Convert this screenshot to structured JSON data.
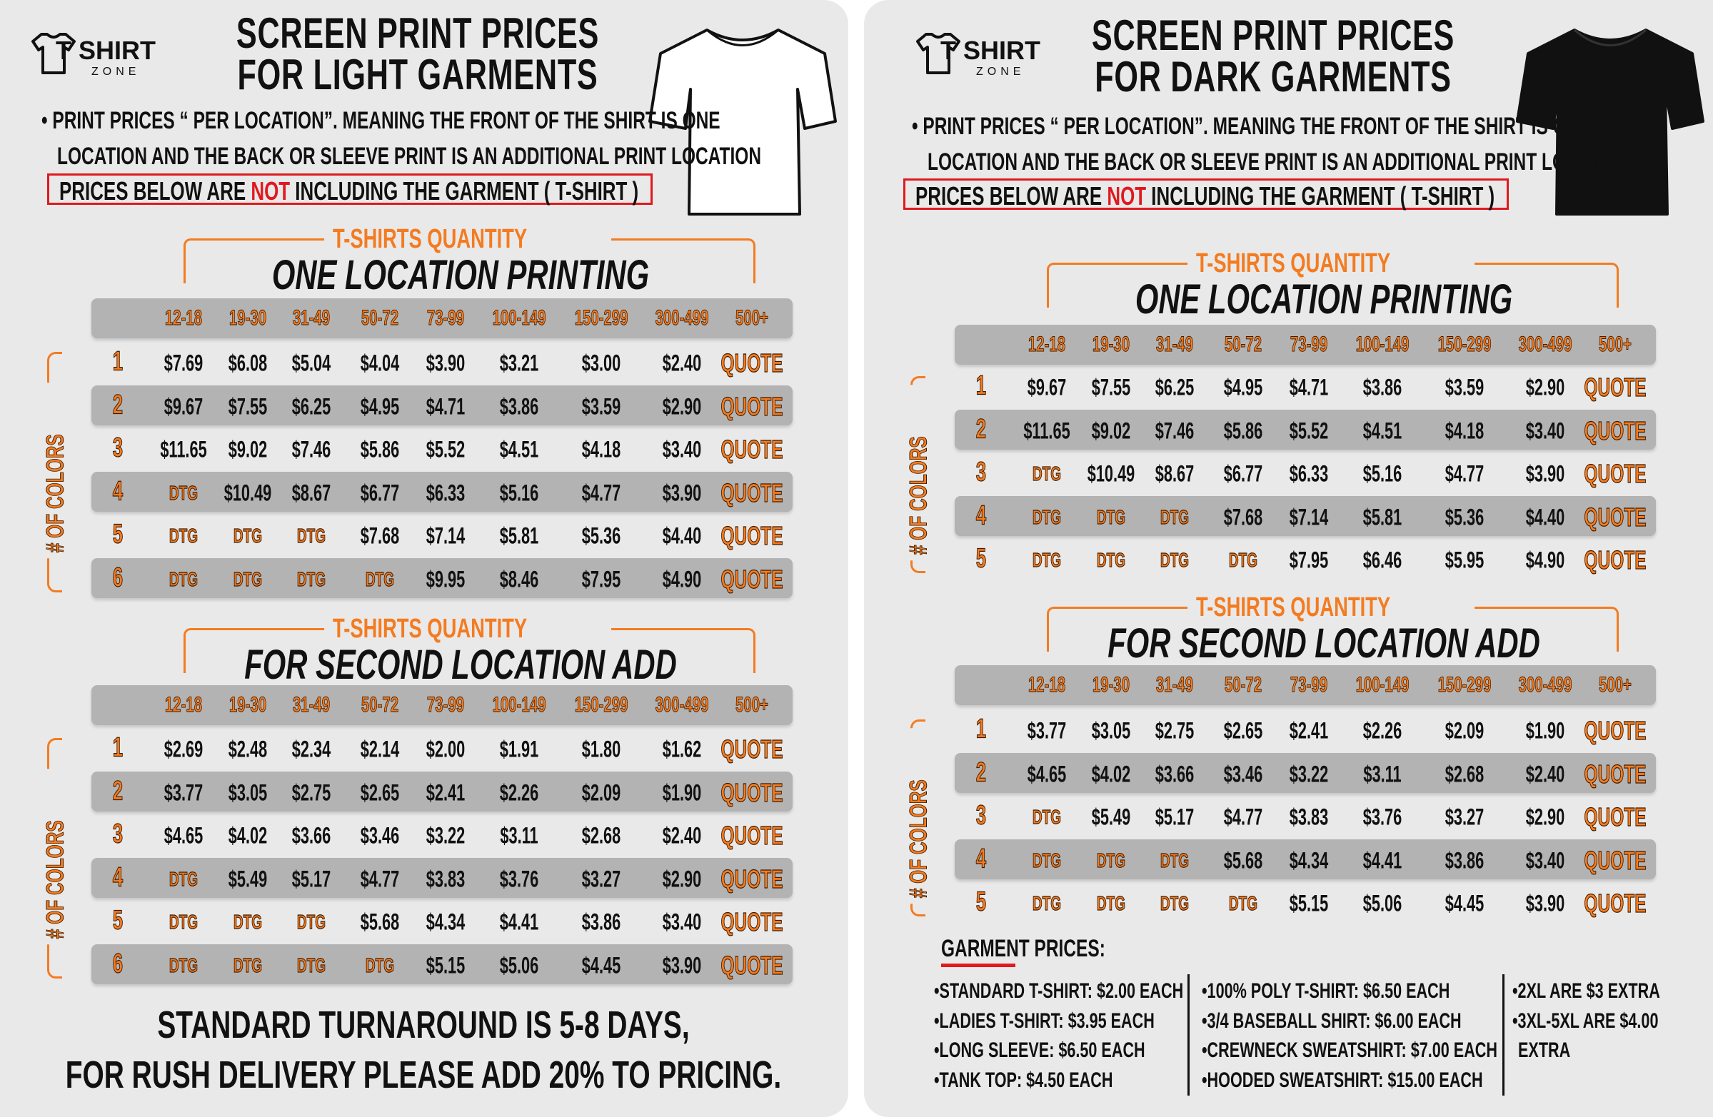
{
  "colors": {
    "accent": "#f47b20",
    "alert": "#e0191e",
    "row_band": "#b3b3b3",
    "panel": "#e9e9e9"
  },
  "left": {
    "logo": {
      "line1": "T SHIRT",
      "line2": "ZONE"
    },
    "title_line1": "SCREEN PRINT PRICES",
    "title_line2": "FOR LIGHT GARMENTS",
    "garment_icon": "white-tshirt-icon",
    "bullet_line1": "• PRINT PRICES “ PER LOCATION”. MEANING THE FRONT OF THE SHIRT IS ONE",
    "bullet_line2": "LOCATION AND THE BACK OR SLEEVE PRINT IS AN ADDITIONAL PRINT LOCATION",
    "notice": {
      "before": "PRICES BELOW ARE ",
      "not": "NOT",
      "after": " INCLUDING THE GARMENT ( T-SHIRT )"
    },
    "tables": [
      {
        "quantity_label": "T-SHIRTS QUANTITY",
        "title": "ONE LOCATION PRINTING",
        "colors_label": "# OF COLORS",
        "columns": [
          "12-18",
          "19-30",
          "31-49",
          "50-72",
          "73-99",
          "100-149",
          "150-299",
          "300-499",
          "500+"
        ],
        "rows": [
          {
            "colors": "1",
            "prices": [
              "$7.69",
              "$6.08",
              "$5.04",
              "$4.04",
              "$3.90",
              "$3.21",
              "$3.00",
              "$2.40",
              "QUOTE"
            ]
          },
          {
            "colors": "2",
            "prices": [
              "$9.67",
              "$7.55",
              "$6.25",
              "$4.95",
              "$4.71",
              "$3.86",
              "$3.59",
              "$2.90",
              "QUOTE"
            ]
          },
          {
            "colors": "3",
            "prices": [
              "$11.65",
              "$9.02",
              "$7.46",
              "$5.86",
              "$5.52",
              "$4.51",
              "$4.18",
              "$3.40",
              "QUOTE"
            ]
          },
          {
            "colors": "4",
            "prices": [
              "DTG",
              "$10.49",
              "$8.67",
              "$6.77",
              "$6.33",
              "$5.16",
              "$4.77",
              "$3.90",
              "QUOTE"
            ]
          },
          {
            "colors": "5",
            "prices": [
              "DTG",
              "DTG",
              "DTG",
              "$7.68",
              "$7.14",
              "$5.81",
              "$5.36",
              "$4.40",
              "QUOTE"
            ]
          },
          {
            "colors": "6",
            "prices": [
              "DTG",
              "DTG",
              "DTG",
              "DTG",
              "$9.95",
              "$8.46",
              "$7.95",
              "$4.90",
              "QUOTE"
            ]
          }
        ]
      },
      {
        "quantity_label": "T-SHIRTS QUANTITY",
        "title": "FOR SECOND LOCATION ADD",
        "colors_label": "# OF COLORS",
        "columns": [
          "12-18",
          "19-30",
          "31-49",
          "50-72",
          "73-99",
          "100-149",
          "150-299",
          "300-499",
          "500+"
        ],
        "rows": [
          {
            "colors": "1",
            "prices": [
              "$2.69",
              "$2.48",
              "$2.34",
              "$2.14",
              "$2.00",
              "$1.91",
              "$1.80",
              "$1.62",
              "QUOTE"
            ]
          },
          {
            "colors": "2",
            "prices": [
              "$3.77",
              "$3.05",
              "$2.75",
              "$2.65",
              "$2.41",
              "$2.26",
              "$2.09",
              "$1.90",
              "QUOTE"
            ]
          },
          {
            "colors": "3",
            "prices": [
              "$4.65",
              "$4.02",
              "$3.66",
              "$3.46",
              "$3.22",
              "$3.11",
              "$2.68",
              "$2.40",
              "QUOTE"
            ]
          },
          {
            "colors": "4",
            "prices": [
              "DTG",
              "$5.49",
              "$5.17",
              "$4.77",
              "$3.83",
              "$3.76",
              "$3.27",
              "$2.90",
              "QUOTE"
            ]
          },
          {
            "colors": "5",
            "prices": [
              "DTG",
              "DTG",
              "DTG",
              "$5.68",
              "$4.34",
              "$4.41",
              "$3.86",
              "$3.40",
              "QUOTE"
            ]
          },
          {
            "colors": "6",
            "prices": [
              "DTG",
              "DTG",
              "DTG",
              "DTG",
              "$5.15",
              "$5.06",
              "$4.45",
              "$3.90",
              "QUOTE"
            ]
          }
        ]
      }
    ],
    "footer_line1": "STANDARD TURNAROUND IS 5-8 DAYS,",
    "footer_line2": "FOR RUSH DELIVERY PLEASE ADD 20% TO PRICING."
  },
  "right": {
    "logo": {
      "line1": "T SHIRT",
      "line2": "ZONE"
    },
    "title_line1": "SCREEN PRINT PRICES",
    "title_line2": "FOR DARK GARMENTS",
    "garment_icon": "black-tshirt-icon",
    "bullet_line1": "• PRINT PRICES “ PER LOCATION”. MEANING THE FRONT OF THE SHIRT IS ONE",
    "bullet_line2": "LOCATION AND THE BACK OR SLEEVE PRINT IS AN ADDITIONAL PRINT LOCATION",
    "notice": {
      "before": "PRICES BELOW ARE ",
      "not": "NOT",
      "after": " INCLUDING THE GARMENT ( T-SHIRT )"
    },
    "tables": [
      {
        "quantity_label": "T-SHIRTS QUANTITY",
        "title": "ONE LOCATION PRINTING",
        "colors_label": "# OF COLORS",
        "columns": [
          "12-18",
          "19-30",
          "31-49",
          "50-72",
          "73-99",
          "100-149",
          "150-299",
          "300-499",
          "500+"
        ],
        "rows": [
          {
            "colors": "1",
            "prices": [
              "$9.67",
              "$7.55",
              "$6.25",
              "$4.95",
              "$4.71",
              "$3.86",
              "$3.59",
              "$2.90",
              "QUOTE"
            ]
          },
          {
            "colors": "2",
            "prices": [
              "$11.65",
              "$9.02",
              "$7.46",
              "$5.86",
              "$5.52",
              "$4.51",
              "$4.18",
              "$3.40",
              "QUOTE"
            ]
          },
          {
            "colors": "3",
            "prices": [
              "DTG",
              "$10.49",
              "$8.67",
              "$6.77",
              "$6.33",
              "$5.16",
              "$4.77",
              "$3.90",
              "QUOTE"
            ]
          },
          {
            "colors": "4",
            "prices": [
              "DTG",
              "DTG",
              "DTG",
              "$7.68",
              "$7.14",
              "$5.81",
              "$5.36",
              "$4.40",
              "QUOTE"
            ]
          },
          {
            "colors": "5",
            "prices": [
              "DTG",
              "DTG",
              "DTG",
              "DTG",
              "$7.95",
              "$6.46",
              "$5.95",
              "$4.90",
              "QUOTE"
            ]
          }
        ]
      },
      {
        "quantity_label": "T-SHIRTS QUANTITY",
        "title": "FOR SECOND LOCATION ADD",
        "colors_label": "# OF COLORS",
        "columns": [
          "12-18",
          "19-30",
          "31-49",
          "50-72",
          "73-99",
          "100-149",
          "150-299",
          "300-499",
          "500+"
        ],
        "rows": [
          {
            "colors": "1",
            "prices": [
              "$3.77",
              "$3.05",
              "$2.75",
              "$2.65",
              "$2.41",
              "$2.26",
              "$2.09",
              "$1.90",
              "QUOTE"
            ]
          },
          {
            "colors": "2",
            "prices": [
              "$4.65",
              "$4.02",
              "$3.66",
              "$3.46",
              "$3.22",
              "$3.11",
              "$2.68",
              "$2.40",
              "QUOTE"
            ]
          },
          {
            "colors": "3",
            "prices": [
              "DTG",
              "$5.49",
              "$5.17",
              "$4.77",
              "$3.83",
              "$3.76",
              "$3.27",
              "$2.90",
              "QUOTE"
            ]
          },
          {
            "colors": "4",
            "prices": [
              "DTG",
              "DTG",
              "DTG",
              "$5.68",
              "$4.34",
              "$4.41",
              "$3.86",
              "$3.40",
              "QUOTE"
            ]
          },
          {
            "colors": "5",
            "prices": [
              "DTG",
              "DTG",
              "DTG",
              "DTG",
              "$5.15",
              "$5.06",
              "$4.45",
              "$3.90",
              "QUOTE"
            ]
          }
        ]
      }
    ],
    "garment_prices": {
      "heading": "GARMENT PRICES:",
      "columns": [
        [
          "•STANDARD T-SHIRT: $2.00 EACH",
          "•LADIES T-SHIRT: $3.95 EACH",
          "•LONG SLEEVE: $6.50 EACH",
          "•TANK TOP: $4.50 EACH"
        ],
        [
          "•100% POLY T-SHIRT: $6.50 EACH",
          "•3/4 BASEBALL SHIRT: $6.00 EACH",
          "•CREWNECK SWEATSHIRT: $7.00 EACH",
          "•HOODED SWEATSHIRT: $15.00 EACH"
        ],
        [
          "•2XL ARE $3 EXTRA",
          "•3XL-5XL ARE $4.00",
          "EXTRA"
        ]
      ]
    }
  }
}
